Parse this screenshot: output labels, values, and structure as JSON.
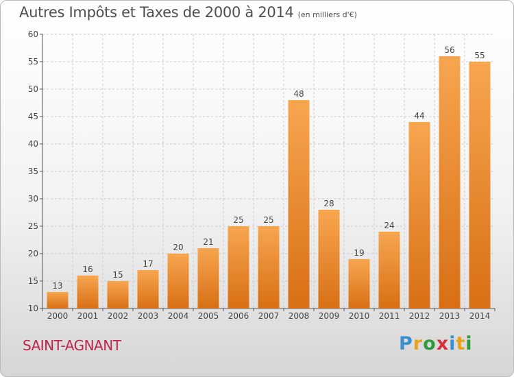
{
  "title": "Autres Impôts et Taxes de 2000 à 2014",
  "subtitle": "(en milliers d'€)",
  "commune": "SAINT-AGNANT",
  "logo": {
    "letters": [
      "P",
      "r",
      "o",
      "x",
      "i",
      "t",
      "i"
    ],
    "colors": [
      "#3a8fd0",
      "#e8a21a",
      "#2f9b3d",
      "#d6303a",
      "#3a8fd0",
      "#e8a21a",
      "#2f9b3d"
    ]
  },
  "colors": {
    "bar_top": "#f7a650",
    "bar_bottom": "#d86f14",
    "axis": "#555555",
    "grid": "#c8c8c8",
    "title": "#4d4d4d",
    "commune": "#c0234c"
  },
  "chart_data": {
    "type": "bar",
    "title": "Autres Impôts et Taxes de 2000 à 2014",
    "subtitle": "(en milliers d'€)",
    "categories": [
      "2000",
      "2001",
      "2002",
      "2003",
      "2004",
      "2005",
      "2006",
      "2007",
      "2008",
      "2009",
      "2010",
      "2011",
      "2012",
      "2013",
      "2014"
    ],
    "values": [
      13,
      16,
      15,
      17,
      20,
      21,
      25,
      25,
      48,
      28,
      19,
      24,
      44,
      56,
      55
    ],
    "ylim": [
      10,
      60
    ],
    "yticks": [
      10,
      15,
      20,
      25,
      30,
      35,
      40,
      45,
      50,
      55,
      60
    ],
    "grid": true,
    "data_labels": true
  }
}
